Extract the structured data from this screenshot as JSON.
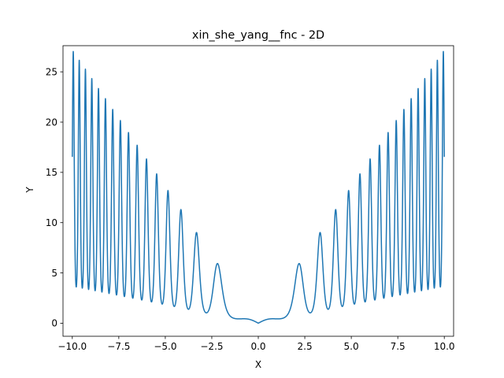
{
  "chart_data": {
    "type": "line",
    "title": "xin_she_yang__fnc - 2D",
    "xlabel": "X",
    "ylabel": "Y",
    "xlim": [
      -10.5,
      10.5
    ],
    "ylim": [
      -1.3,
      27.6
    ],
    "x_ticks": [
      -10.0,
      -7.5,
      -5.0,
      -2.5,
      0.0,
      2.5,
      5.0,
      7.5,
      10.0
    ],
    "x_tick_labels": [
      "−10.0",
      "−7.5",
      "−5.0",
      "−2.5",
      "0.0",
      "2.5",
      "5.0",
      "7.5",
      "10.0"
    ],
    "y_ticks": [
      0,
      5,
      10,
      15,
      20,
      25
    ],
    "y_tick_labels": [
      "0",
      "5",
      "10",
      "15",
      "20",
      "25"
    ],
    "grid": false,
    "series": [
      {
        "function": "y = |x| * exp(-sin(x^2))",
        "x_range": [
          -10,
          10
        ],
        "samples": 4000,
        "color": "#1f77b4",
        "key_points": [
          {
            "x": -10.0,
            "y": 16.6
          },
          {
            "x": -9.9,
            "y": 26.3
          },
          {
            "x": -3.32,
            "y": 9.0
          },
          {
            "x": -2.17,
            "y": 5.9
          },
          {
            "x": 0.0,
            "y": 0.0
          },
          {
            "x": 2.17,
            "y": 5.9
          },
          {
            "x": 3.32,
            "y": 9.0
          },
          {
            "x": 9.9,
            "y": 26.3
          },
          {
            "x": 10.0,
            "y": 16.6
          }
        ]
      }
    ]
  }
}
